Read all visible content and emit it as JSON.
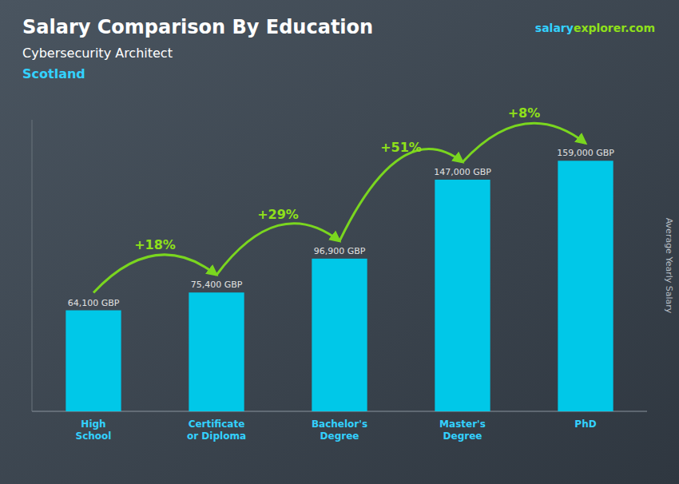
{
  "chart_data": {
    "type": "bar",
    "title": "Salary Comparison By Education",
    "subtitle": "Cybersecurity Architect",
    "location": "Scotland",
    "watermark": [
      "salary",
      "explorer",
      ".com"
    ],
    "ylabel": "Average Yearly Salary",
    "categories": [
      "High\nSchool",
      "Certificate\nor Diploma",
      "Bachelor's\nDegree",
      "Master's\nDegree",
      "PhD"
    ],
    "values": [
      64100,
      75400,
      96900,
      147000,
      159000
    ],
    "value_labels": [
      "64,100 GBP",
      "75,400 GBP",
      "96,900 GBP",
      "147,000 GBP",
      "159,000 GBP"
    ],
    "data_labels": true,
    "annotations": [
      "+18%",
      "+29%",
      "+51%",
      "+8%"
    ],
    "color": "#00C8E8",
    "ylim": [
      0,
      185000
    ],
    "grid": false,
    "tick_labels": "x"
  }
}
